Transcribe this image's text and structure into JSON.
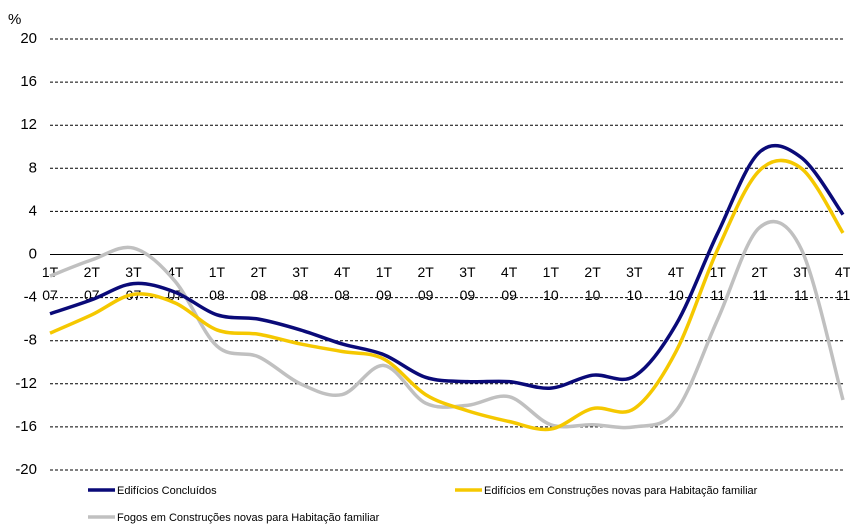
{
  "chart_data": {
    "type": "line",
    "y_unit": "%",
    "categories": [
      [
        "1T",
        "07"
      ],
      [
        "2T",
        "07"
      ],
      [
        "3T",
        "07"
      ],
      [
        "4T",
        "07"
      ],
      [
        "1T",
        "08"
      ],
      [
        "2T",
        "08"
      ],
      [
        "3T",
        "08"
      ],
      [
        "4T",
        "08"
      ],
      [
        "1T",
        "09"
      ],
      [
        "2T",
        "09"
      ],
      [
        "3T",
        "09"
      ],
      [
        "4T",
        "09"
      ],
      [
        "1T",
        "10"
      ],
      [
        "2T",
        "10"
      ],
      [
        "3T",
        "10"
      ],
      [
        "4T",
        "10"
      ],
      [
        "1T",
        "11"
      ],
      [
        "2T",
        "11"
      ],
      [
        "3T",
        "11"
      ],
      [
        "4T",
        "11"
      ]
    ],
    "series": [
      {
        "name": "Edifícios Concluídos",
        "color": "#0a0a78",
        "values": [
          -5.5,
          -4.2,
          -2.7,
          -3.5,
          -5.6,
          -6,
          -7,
          -8.3,
          -9.3,
          -11.4,
          -11.8,
          -11.8,
          -12.4,
          -11.2,
          -11.3,
          -6.5,
          2,
          9.5,
          9,
          3.7
        ]
      },
      {
        "name": "Edifícios em Construções novas para Habitação  familiar",
        "color": "#f5c800",
        "values": [
          -7.3,
          -5.6,
          -3.7,
          -4.5,
          -7,
          -7.4,
          -8.3,
          -9,
          -9.7,
          -13,
          -14.5,
          -15.5,
          -16.2,
          -14.3,
          -14.3,
          -9,
          0.5,
          7.8,
          8,
          2
        ]
      },
      {
        "name": "Fogos em Construções novas para Habitação  familiar",
        "color": "#c0c0c0",
        "values": [
          -2,
          -0.5,
          0.6,
          -2.5,
          -8.5,
          -9.5,
          -12,
          -13,
          -10.3,
          -13.8,
          -14,
          -13.2,
          -15.8,
          -15.8,
          -16,
          -14.5,
          -6,
          2.5,
          0.5,
          -13.5
        ]
      }
    ],
    "ylim": [
      -20,
      20
    ],
    "yticks": [
      -20,
      -16,
      -12,
      -8,
      -4,
      0,
      4,
      8,
      12,
      16,
      20
    ],
    "grid": true
  }
}
